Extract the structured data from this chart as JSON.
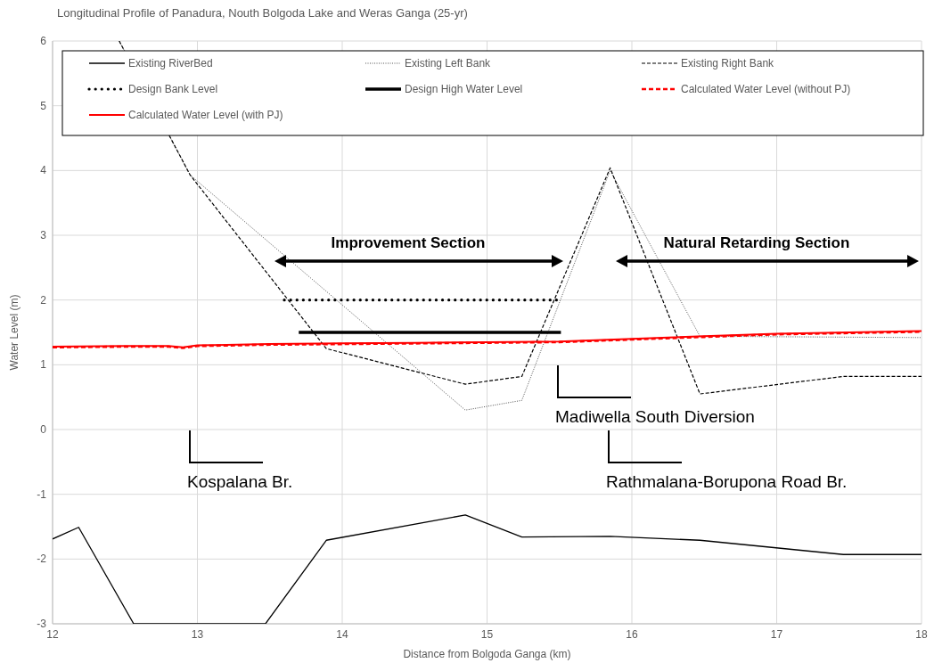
{
  "chart_data": {
    "type": "line",
    "title": "Longitudinal Profile of Panadura, Nouth Bolgoda Lake and Weras Ganga (25-yr)",
    "xlabel": "Distance from Bolgoda Ganga (km)",
    "ylabel": "Water Level (m)",
    "xlim": [
      12,
      18
    ],
    "xticks": [
      12,
      13,
      14,
      15,
      16,
      17,
      18
    ],
    "ylim": [
      -3,
      6
    ],
    "yticks": [
      -3,
      -2,
      -1,
      0,
      1,
      2,
      3,
      4,
      5,
      6
    ],
    "grid": true,
    "legend": "top",
    "marker": "none",
    "series": [
      {
        "name": "Existing RiverBed",
        "color": "#000000",
        "line_style": "solid",
        "x": [
          12,
          12.18,
          12.56,
          13.47,
          13.89,
          14.85,
          15.24,
          15.85,
          16.47,
          17.46,
          18
        ],
        "values": [
          -1.69,
          -1.51,
          -3,
          -3,
          -1.71,
          -1.32,
          -1.66,
          -1.65,
          -1.71,
          -1.93,
          -1.93
        ]
      },
      {
        "name": "Existing Left Bank",
        "color": "#404040",
        "line_style": "dotted",
        "x": [
          12.46,
          12.95,
          14.85,
          15.24,
          15.85,
          16.47,
          18
        ],
        "values": [
          6,
          3.93,
          0.3,
          0.45,
          4.0,
          1.44,
          1.42
        ]
      },
      {
        "name": "Existing Right Bank",
        "color": "#000000",
        "line_style": "dashed",
        "x": [
          12.46,
          12.95,
          13.89,
          14.85,
          15.24,
          15.85,
          16.47,
          17.46,
          18
        ],
        "values": [
          6,
          3.93,
          1.25,
          0.7,
          0.82,
          4.04,
          0.55,
          0.82,
          0.82
        ]
      },
      {
        "name": "Design Bank Level",
        "color": "#000000",
        "line_style": "dotted",
        "x": [
          13.6,
          15.51
        ],
        "values": [
          2.0,
          2.0
        ]
      },
      {
        "name": "Design High Water Level",
        "color": "#000000",
        "line_style": "solid",
        "x": [
          13.7,
          15.51
        ],
        "values": [
          1.5,
          1.5
        ]
      },
      {
        "name": "Calculated Water Level (without PJ)",
        "color": "#ff0000",
        "line_style": "dashed",
        "x": [
          12,
          12.5,
          12.8,
          12.9,
          13,
          13.5,
          14,
          14.5,
          15,
          15.5,
          16,
          16.5,
          17,
          17.5,
          18
        ],
        "values": [
          1.27,
          1.28,
          1.28,
          1.26,
          1.29,
          1.31,
          1.32,
          1.33,
          1.34,
          1.35,
          1.39,
          1.43,
          1.47,
          1.49,
          1.51
        ]
      },
      {
        "name": "Calculated Water Level (with PJ)",
        "color": "#ff0000",
        "line_style": "solid",
        "x": [
          12,
          12.5,
          12.8,
          12.9,
          13,
          13.5,
          14,
          14.5,
          15,
          15.5,
          16,
          16.5,
          17,
          17.5,
          18
        ],
        "values": [
          1.28,
          1.29,
          1.29,
          1.27,
          1.3,
          1.32,
          1.33,
          1.34,
          1.35,
          1.36,
          1.4,
          1.44,
          1.48,
          1.5,
          1.52
        ]
      }
    ],
    "annotations": [
      "Improvement Section",
      "Natural Retarding Section",
      "Kospalana Br.",
      "Madiwella South Diversion",
      "Rathmalana-Borupona Road Br."
    ]
  }
}
